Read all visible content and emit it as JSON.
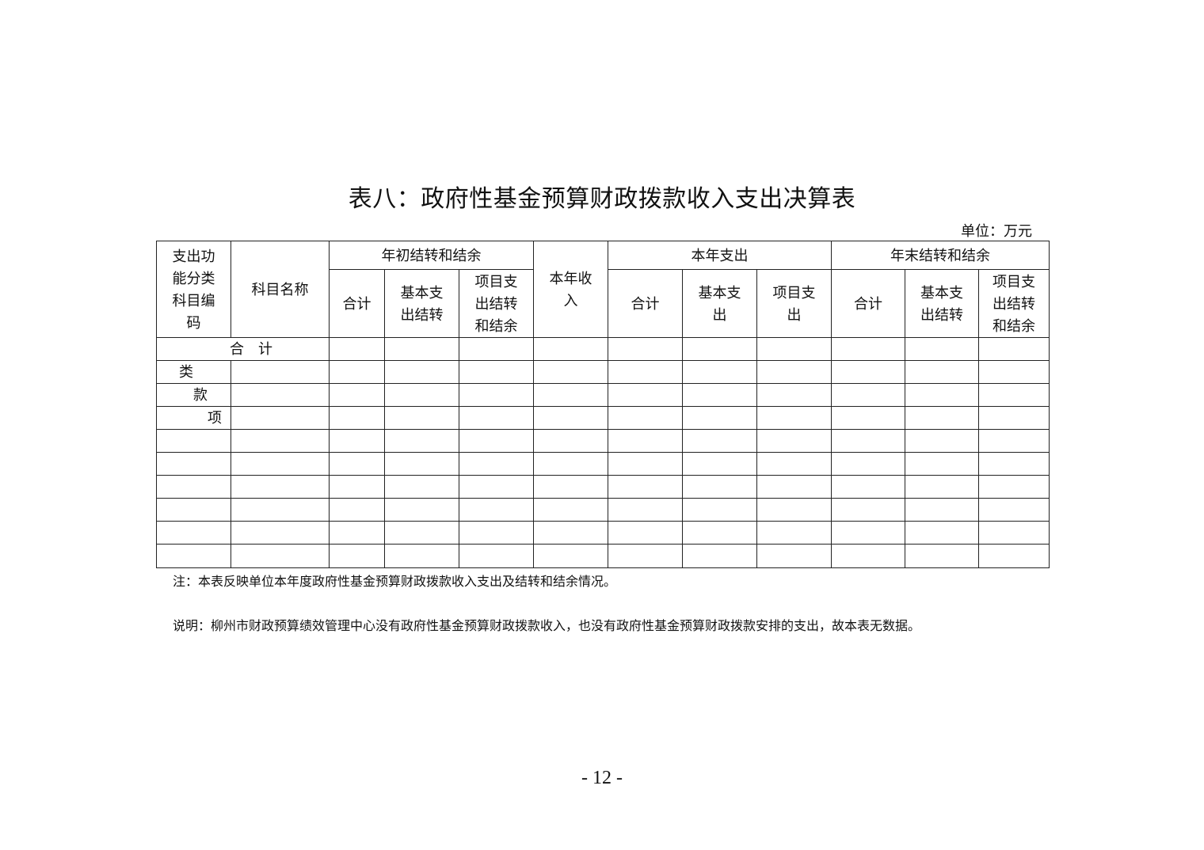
{
  "title": "表八：政府性基金预算财政拨款收入支出决算表",
  "unit": "单位：万元",
  "table": {
    "col_code": "支出功\n能分类\n科目编\n码",
    "col_name": "科目名称",
    "group_begin": "年初结转和结余",
    "col_income": "本年收\n入",
    "group_expense": "本年支出",
    "group_end": "年末结转和结余",
    "begin_sub": [
      "合计",
      "基本支\n出结转",
      "项目支\n出结转\n和结余"
    ],
    "expense_sub": [
      "合计",
      "基本支\n出",
      "项目支\n出"
    ],
    "end_sub": [
      "合计",
      "基本支\n出结转",
      "项目支\n出结转\n和结余"
    ],
    "total_label": "合　计",
    "level_labels": [
      "类",
      "款",
      "项"
    ]
  },
  "note": "注：本表反映单位本年度政府性基金预算财政拨款收入支出及结转和结余情况。",
  "explanation": "说明：柳州市财政预算绩效管理中心没有政府性基金预算财政拨款收入，也没有政府性基金预算财政拨款安排的支出，故本表无数据。",
  "page_number": "- 12 -"
}
